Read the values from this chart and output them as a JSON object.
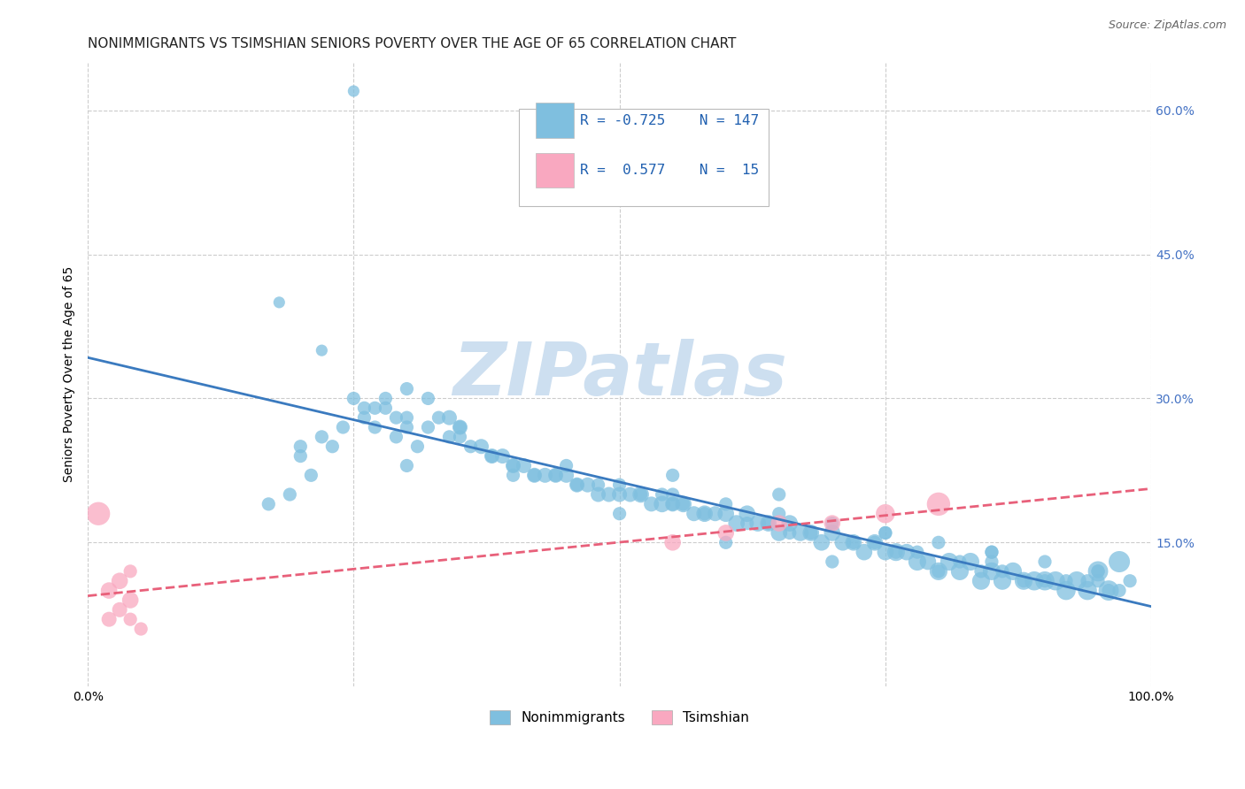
{
  "title": "NONIMMIGRANTS VS TSIMSHIAN SENIORS POVERTY OVER THE AGE OF 65 CORRELATION CHART",
  "source": "Source: ZipAtlas.com",
  "ylabel": "Seniors Poverty Over the Age of 65",
  "xlim": [
    0,
    1.0
  ],
  "ylim": [
    0,
    0.65
  ],
  "right_ytick_labels": [
    "60.0%",
    "45.0%",
    "30.0%",
    "15.0%"
  ],
  "right_ytick_vals": [
    0.6,
    0.45,
    0.3,
    0.15
  ],
  "hgrid_vals": [
    0.15,
    0.3,
    0.45,
    0.6
  ],
  "vgrid_vals": [
    0.0,
    0.25,
    0.5,
    0.75,
    1.0
  ],
  "blue_R": -0.725,
  "blue_N": 147,
  "pink_R": 0.577,
  "pink_N": 15,
  "blue_color": "#7fbfdf",
  "pink_color": "#f9a8c0",
  "blue_line_color": "#3a7abf",
  "pink_line_color": "#e8607a",
  "watermark": "ZIPatlas",
  "watermark_color": "#cddff0",
  "background_color": "#ffffff",
  "title_fontsize": 11,
  "axis_label_fontsize": 10,
  "tick_fontsize": 10,
  "blue_scatter_x": [
    0.25,
    0.18,
    0.22,
    0.28,
    0.3,
    0.27,
    0.29,
    0.31,
    0.26,
    0.33,
    0.35,
    0.38,
    0.4,
    0.42,
    0.44,
    0.46,
    0.48,
    0.5,
    0.52,
    0.54,
    0.56,
    0.58,
    0.6,
    0.62,
    0.64,
    0.66,
    0.68,
    0.7,
    0.72,
    0.74,
    0.76,
    0.78,
    0.8,
    0.82,
    0.84,
    0.86,
    0.88,
    0.9,
    0.92,
    0.94,
    0.96,
    0.97,
    0.95,
    0.93,
    0.91,
    0.89,
    0.87,
    0.85,
    0.83,
    0.81,
    0.79,
    0.77,
    0.75,
    0.73,
    0.71,
    0.69,
    0.67,
    0.65,
    0.63,
    0.61,
    0.59,
    0.57,
    0.55,
    0.53,
    0.51,
    0.49,
    0.47,
    0.45,
    0.43,
    0.41,
    0.39,
    0.37,
    0.35,
    0.34,
    0.32,
    0.3,
    0.28,
    0.26,
    0.24,
    0.22,
    0.2,
    0.3,
    0.5,
    0.55,
    0.6,
    0.65,
    0.7,
    0.75,
    0.8,
    0.85,
    0.9,
    0.95,
    0.98,
    0.97,
    0.96,
    0.94,
    0.92,
    0.88,
    0.86,
    0.84,
    0.82,
    0.78,
    0.76,
    0.74,
    0.72,
    0.68,
    0.66,
    0.64,
    0.62,
    0.58,
    0.56,
    0.54,
    0.52,
    0.48,
    0.46,
    0.44,
    0.42,
    0.4,
    0.38,
    0.36,
    0.34,
    0.32,
    0.29,
    0.27,
    0.25,
    0.23,
    0.21,
    0.19,
    0.17,
    0.35,
    0.45,
    0.55,
    0.65,
    0.75,
    0.85,
    0.95,
    0.9,
    0.8,
    0.7,
    0.6,
    0.5,
    0.4,
    0.3,
    0.2,
    0.55,
    0.85,
    0.95
  ],
  "blue_scatter_y": [
    0.62,
    0.4,
    0.35,
    0.3,
    0.28,
    0.27,
    0.26,
    0.25,
    0.29,
    0.28,
    0.26,
    0.24,
    0.23,
    0.22,
    0.22,
    0.21,
    0.2,
    0.2,
    0.2,
    0.19,
    0.19,
    0.18,
    0.18,
    0.18,
    0.17,
    0.17,
    0.16,
    0.16,
    0.15,
    0.15,
    0.14,
    0.13,
    0.12,
    0.12,
    0.11,
    0.11,
    0.11,
    0.11,
    0.1,
    0.1,
    0.1,
    0.13,
    0.12,
    0.11,
    0.11,
    0.11,
    0.12,
    0.12,
    0.13,
    0.13,
    0.13,
    0.14,
    0.14,
    0.14,
    0.15,
    0.15,
    0.16,
    0.16,
    0.17,
    0.17,
    0.18,
    0.18,
    0.19,
    0.19,
    0.2,
    0.2,
    0.21,
    0.22,
    0.22,
    0.23,
    0.24,
    0.25,
    0.27,
    0.28,
    0.3,
    0.31,
    0.29,
    0.28,
    0.27,
    0.26,
    0.25,
    0.23,
    0.21,
    0.2,
    0.19,
    0.18,
    0.17,
    0.16,
    0.15,
    0.14,
    0.13,
    0.12,
    0.11,
    0.1,
    0.1,
    0.11,
    0.11,
    0.11,
    0.12,
    0.12,
    0.13,
    0.14,
    0.14,
    0.15,
    0.15,
    0.16,
    0.16,
    0.17,
    0.17,
    0.18,
    0.19,
    0.2,
    0.2,
    0.21,
    0.21,
    0.22,
    0.22,
    0.23,
    0.24,
    0.25,
    0.26,
    0.27,
    0.28,
    0.29,
    0.3,
    0.25,
    0.22,
    0.2,
    0.19,
    0.27,
    0.23,
    0.22,
    0.2,
    0.16,
    0.14,
    0.12,
    0.11,
    0.12,
    0.13,
    0.15,
    0.18,
    0.22,
    0.27,
    0.24,
    0.19,
    0.13,
    0.11
  ],
  "blue_scatter_size": [
    30,
    30,
    30,
    40,
    40,
    40,
    40,
    40,
    40,
    40,
    40,
    50,
    50,
    50,
    50,
    50,
    50,
    50,
    60,
    60,
    60,
    60,
    60,
    60,
    60,
    60,
    60,
    60,
    60,
    60,
    70,
    70,
    70,
    70,
    70,
    70,
    70,
    80,
    80,
    80,
    90,
    100,
    90,
    80,
    80,
    80,
    70,
    70,
    70,
    70,
    60,
    60,
    60,
    60,
    60,
    60,
    60,
    60,
    60,
    60,
    50,
    50,
    50,
    50,
    50,
    50,
    50,
    50,
    50,
    50,
    50,
    50,
    50,
    50,
    40,
    40,
    40,
    40,
    40,
    40,
    40,
    40,
    40,
    40,
    40,
    40,
    40,
    40,
    40,
    40,
    40,
    40,
    40,
    40,
    40,
    40,
    40,
    40,
    40,
    40,
    40,
    40,
    40,
    40,
    40,
    40,
    40,
    40,
    40,
    40,
    40,
    40,
    40,
    40,
    40,
    40,
    40,
    40,
    40,
    40,
    40,
    40,
    40,
    40,
    40,
    40,
    40,
    40,
    40,
    40,
    40,
    40,
    40,
    40,
    40,
    40,
    40,
    40,
    40,
    40,
    40,
    40,
    40,
    40,
    40,
    40,
    40
  ],
  "pink_scatter_x": [
    0.01,
    0.02,
    0.02,
    0.03,
    0.03,
    0.04,
    0.04,
    0.04,
    0.05,
    0.55,
    0.6,
    0.65,
    0.7,
    0.75,
    0.8
  ],
  "pink_scatter_y": [
    0.18,
    0.1,
    0.07,
    0.11,
    0.08,
    0.12,
    0.09,
    0.07,
    0.06,
    0.15,
    0.16,
    0.17,
    0.17,
    0.18,
    0.19
  ],
  "pink_scatter_size": [
    120,
    60,
    50,
    60,
    50,
    40,
    60,
    40,
    40,
    60,
    60,
    60,
    60,
    80,
    120
  ]
}
